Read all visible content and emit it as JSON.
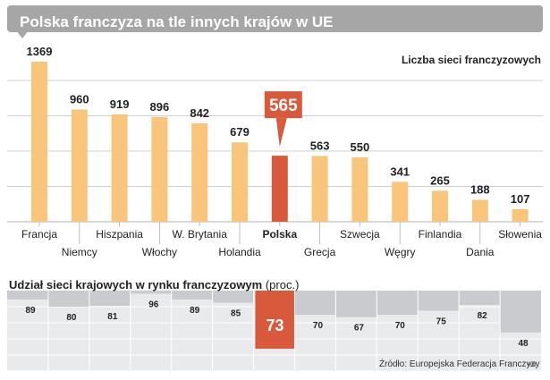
{
  "header": {
    "title": "Polska franczyza na tle innych krajów w UE"
  },
  "bottom": {
    "title_bold": "Udział sieci krajowych w rynku franczyzowym",
    "title_unit": "(proc.)",
    "source": "Źródło: Europejska Federacja Franczyzy",
    "credit": "RM"
  },
  "colors": {
    "bar": "#f8c57a",
    "highlight": "#d9593c",
    "panel_bg": "#e9eaec",
    "panel_top": "#c9cbce",
    "gridline": "#bfc1c4"
  },
  "chart_data": [
    {
      "type": "bar",
      "title": "",
      "ylabel": "Liczba sieci franczyzowych",
      "xlabel": "",
      "grid": true,
      "ylim": [
        0,
        1400
      ],
      "highlight": "Polska",
      "categories": [
        "Francja",
        "Niemcy",
        "Hiszpania",
        "Włochy",
        "W. Brytania",
        "Holandia",
        "Polska",
        "Grecja",
        "Szwecja",
        "Węgry",
        "Finlandia",
        "Dania",
        "Słowenia"
      ],
      "values": [
        1369,
        960,
        919,
        896,
        842,
        679,
        565,
        563,
        550,
        341,
        265,
        188,
        107
      ],
      "value_labels": [
        "1369",
        "960",
        "919",
        "896",
        "842",
        "679",
        "565",
        "563",
        "550",
        "341",
        "265",
        "188",
        "107"
      ]
    },
    {
      "type": "bar",
      "title": "Udział sieci krajowych w rynku franczyzowym (proc.)",
      "unit": "proc.",
      "ylim": [
        0,
        100
      ],
      "orientation": "down",
      "highlight": "Polska",
      "categories": [
        "Francja",
        "Niemcy",
        "Hiszpania",
        "Włochy",
        "W. Brytania",
        "Holandia",
        "Polska",
        "Grecja",
        "Szwecja",
        "Węgry",
        "Finlandia",
        "Dania",
        "Słowenia"
      ],
      "values": [
        89,
        80,
        81,
        96,
        89,
        85,
        73,
        70,
        67,
        70,
        75,
        82,
        48
      ],
      "value_labels": [
        "89",
        "80",
        "81",
        "96",
        "89",
        "85",
        "73",
        "70",
        "67",
        "70",
        "75",
        "82",
        "48"
      ]
    }
  ]
}
